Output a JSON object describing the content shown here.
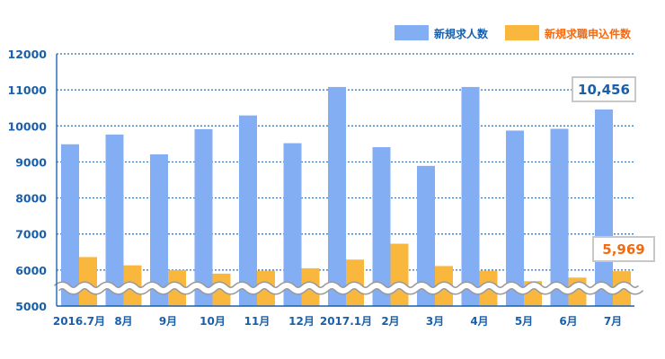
{
  "chart_data": {
    "type": "bar",
    "categories": [
      "2016.7月",
      "8月",
      "9月",
      "10月",
      "11月",
      "12月",
      "2017.1月",
      "2月",
      "3月",
      "4月",
      "5月",
      "6月",
      "7月"
    ],
    "series": [
      {
        "name": "新規求人数",
        "color": "#84aef3",
        "values": [
          9490,
          9760,
          9210,
          9910,
          10290,
          9520,
          11080,
          9410,
          8890,
          11080,
          9870,
          9920,
          10456
        ]
      },
      {
        "name": "新規求職申込件数",
        "color": "#f9b73e",
        "values": [
          6360,
          6130,
          6000,
          5900,
          5980,
          6050,
          6290,
          6730,
          6110,
          5980,
          5690,
          5790,
          5969
        ]
      }
    ],
    "ylim": [
      5000,
      12000
    ],
    "yticks": [
      5000,
      6000,
      7000,
      8000,
      9000,
      10000,
      11000,
      12000
    ],
    "grid": true,
    "axis_break": true,
    "legend": "top-right",
    "annotations": [
      {
        "text": "10,456",
        "series": 0,
        "color": "#1a5fa8"
      },
      {
        "text": "5,969",
        "series": 1,
        "color": "#f26a12"
      }
    ]
  }
}
